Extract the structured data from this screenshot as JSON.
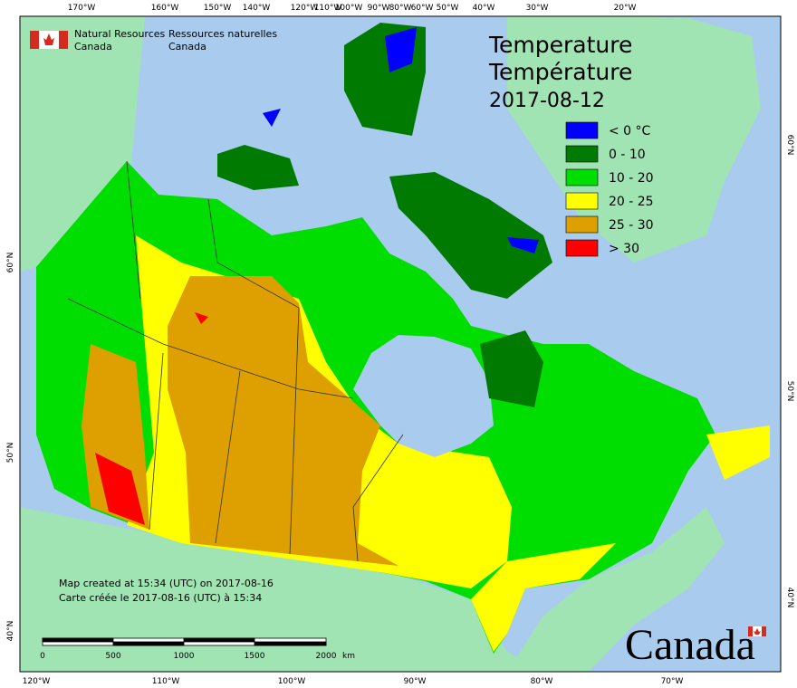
{
  "header": {
    "org_en": [
      "Natural Resources",
      "Canada"
    ],
    "org_fr": [
      "Ressources naturelles",
      "Canada"
    ]
  },
  "title": [
    "Temperature",
    "Température"
  ],
  "date": "2017-08-12",
  "legend": [
    {
      "label": "< 0 °C",
      "color": "#0000ff"
    },
    {
      "label": "0 - 10",
      "color": "#007a00"
    },
    {
      "label": "10 - 20",
      "color": "#00dd00"
    },
    {
      "label": "20 - 25",
      "color": "#ffff00"
    },
    {
      "label": "25 - 30",
      "color": "#dda000"
    },
    {
      "label": "> 30",
      "color": "#ff0000"
    }
  ],
  "graticule": {
    "top": [
      "170°W",
      "160°W",
      "150°W",
      "140°W",
      "120°W",
      "110°W",
      "100°W",
      "90°W",
      "80°W",
      "60°W",
      "50°W",
      "40°W",
      "30°W",
      "20°W"
    ],
    "bottom": [
      "120°W",
      "110°W",
      "100°W",
      "90°W",
      "80°W",
      "70°W"
    ],
    "left": [
      "60°N",
      "50°N",
      "40°N"
    ],
    "right": [
      "60°N",
      "50°N",
      "40°N"
    ]
  },
  "notes": [
    "Map created at 15:34 (UTC) on 2017-08-16",
    "Carte créée le 2017-08-16 (UTC) à 15:34"
  ],
  "scale": {
    "labels": [
      "0",
      "500",
      "1000",
      "1500",
      "2000"
    ],
    "unit": "km"
  },
  "wordmark": "Canada"
}
